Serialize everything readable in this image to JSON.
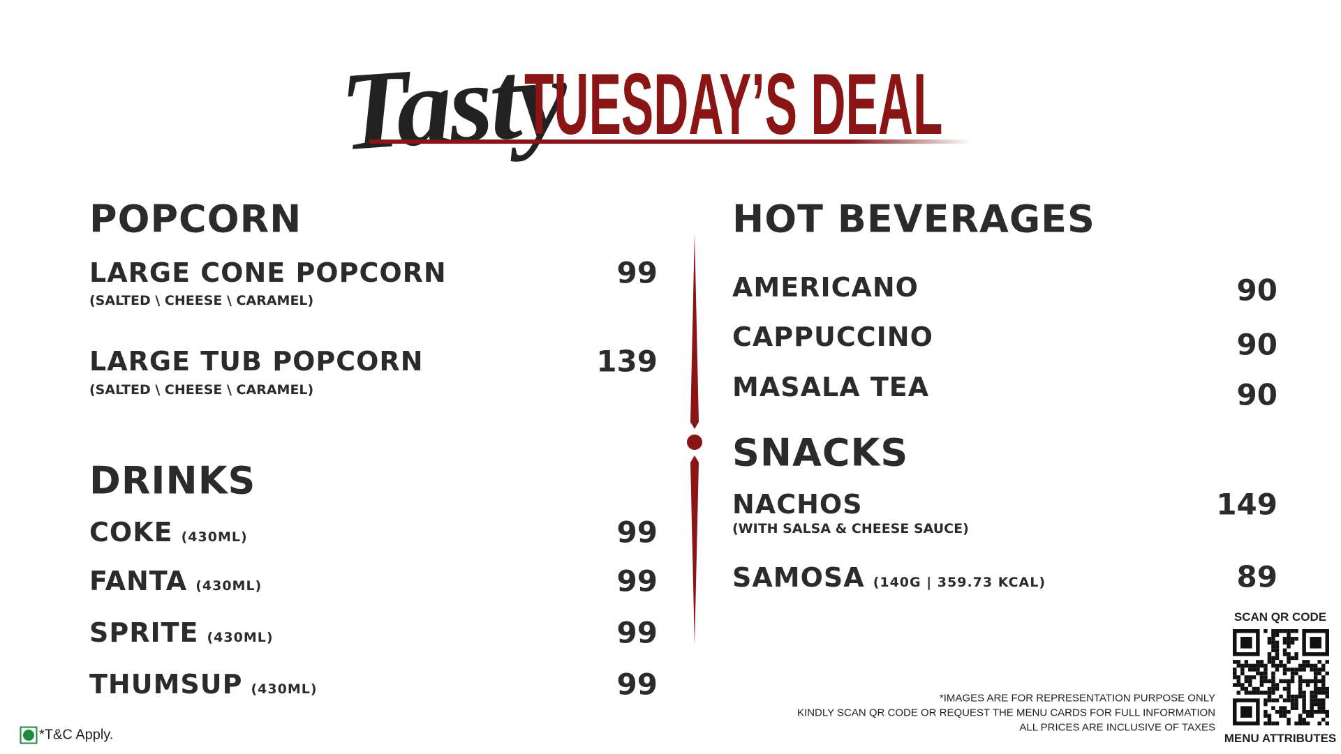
{
  "header": {
    "script_title": "Tasty",
    "title": "TUESDAY’S DEAL"
  },
  "left": [
    {
      "heading": "POPCORN",
      "items": [
        {
          "name": "LARGE CONE POPCORN",
          "note": "(SALTED \\ CHEESE \\ CARAMEL)",
          "price": 99
        },
        {
          "name": "LARGE TUB POPCORN",
          "note": "(SALTED \\ CHEESE \\ CARAMEL)",
          "price": 139
        }
      ]
    },
    {
      "heading": "DRINKS",
      "items": [
        {
          "name": "COKE",
          "note": "(430ML)",
          "price": 99
        },
        {
          "name": "FANTA",
          "note": "(430ML)",
          "price": 99
        },
        {
          "name": "SPRITE",
          "note": "(430ML)",
          "price": 99
        },
        {
          "name": "THUMSUP",
          "note": "(430ML)",
          "price": 99
        }
      ]
    }
  ],
  "right": [
    {
      "heading": "HOT BEVERAGES",
      "items": [
        {
          "name": "AMERICANO",
          "price": 90
        },
        {
          "name": "CAPPUCCINO",
          "price": 90
        },
        {
          "name": "MASALA TEA",
          "price": 90
        }
      ]
    },
    {
      "heading": "SNACKS",
      "items": [
        {
          "name": "NACHOS",
          "note": "(WITH SALSA & CHEESE SAUCE)",
          "price": 149
        },
        {
          "name": "SAMOSA",
          "note": "(140G | 359.73 KCAL)",
          "price": 89
        }
      ]
    }
  ],
  "footer": {
    "notes": [
      "*IMAGES ARE FOR REPRESENTATION PURPOSE ONLY",
      "KINDLY SCAN QR CODE OR REQUEST THE MENU CARDS FOR FULL INFORMATION",
      "ALL PRICES ARE INCLUSIVE OF TAXES"
    ],
    "terms": "*T&C Apply.",
    "qr_top": "SCAN QR CODE",
    "qr_bottom": "MENU ATTRIBUTES"
  }
}
